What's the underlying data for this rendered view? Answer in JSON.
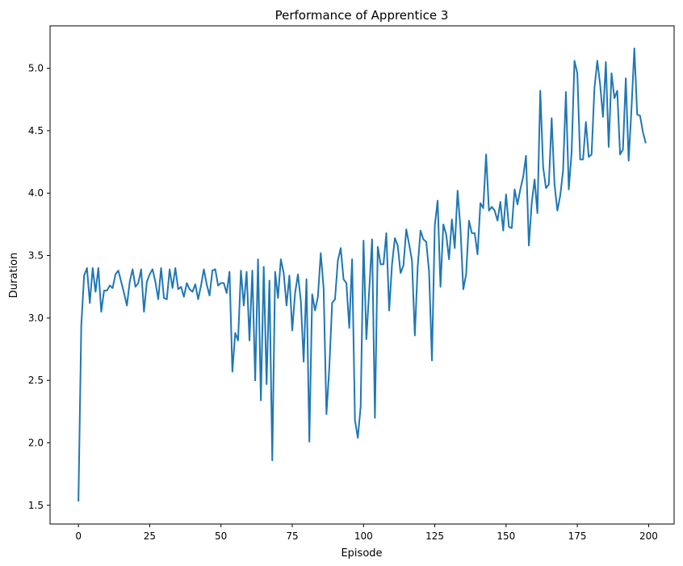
{
  "chart_data": {
    "type": "line",
    "title": "Performance of Apprentice 3",
    "xlabel": "Episode",
    "ylabel": "Duration",
    "xlim": [
      -9.95,
      208.95
    ],
    "ylim": [
      1.35,
      5.34
    ],
    "xticks": [
      0,
      25,
      50,
      75,
      100,
      125,
      150,
      175,
      200
    ],
    "yticks": [
      1.5,
      2.0,
      2.5,
      3.0,
      3.5,
      4.0,
      4.5,
      5.0
    ],
    "xtick_labels": [
      "0",
      "25",
      "50",
      "75",
      "100",
      "125",
      "150",
      "175",
      "200"
    ],
    "ytick_labels": [
      "1.5",
      "2.0",
      "2.5",
      "3.0",
      "3.5",
      "4.0",
      "4.5",
      "5.0"
    ],
    "grid": false,
    "legend": "none",
    "series": [
      {
        "color": "#1f77b4",
        "values": [
          1.53,
          2.94,
          3.34,
          3.4,
          3.12,
          3.4,
          3.21,
          3.4,
          3.05,
          3.22,
          3.22,
          3.26,
          3.24,
          3.35,
          3.38,
          3.29,
          3.2,
          3.1,
          3.29,
          3.39,
          3.25,
          3.28,
          3.39,
          3.05,
          3.29,
          3.35,
          3.39,
          3.29,
          3.15,
          3.4,
          3.16,
          3.15,
          3.39,
          3.24,
          3.4,
          3.23,
          3.25,
          3.17,
          3.28,
          3.23,
          3.21,
          3.27,
          3.15,
          3.26,
          3.39,
          3.27,
          3.18,
          3.38,
          3.39,
          3.26,
          3.28,
          3.28,
          3.2,
          3.37,
          2.57,
          2.88,
          2.82,
          3.38,
          3.1,
          3.37,
          2.82,
          3.38,
          2.5,
          3.47,
          2.34,
          3.41,
          2.47,
          3.3,
          1.86,
          3.37,
          3.16,
          3.47,
          3.36,
          3.1,
          3.34,
          2.9,
          3.2,
          3.35,
          3.14,
          2.65,
          3.31,
          2.01,
          3.19,
          3.06,
          3.17,
          3.52,
          3.24,
          2.23,
          2.6,
          3.12,
          3.15,
          3.46,
          3.56,
          3.31,
          3.28,
          2.92,
          3.47,
          2.18,
          2.04,
          2.29,
          3.62,
          2.83,
          3.22,
          3.63,
          2.2,
          3.57,
          3.43,
          3.43,
          3.68,
          3.06,
          3.43,
          3.64,
          3.58,
          3.36,
          3.42,
          3.71,
          3.59,
          3.46,
          2.86,
          3.41,
          3.7,
          3.63,
          3.61,
          3.37,
          2.66,
          3.74,
          3.94,
          3.25,
          3.75,
          3.67,
          3.47,
          3.79,
          3.56,
          4.02,
          3.72,
          3.23,
          3.35,
          3.78,
          3.68,
          3.68,
          3.51,
          3.92,
          3.88,
          4.31,
          3.86,
          3.89,
          3.86,
          3.78,
          3.93,
          3.7,
          3.99,
          3.73,
          3.72,
          4.03,
          3.91,
          4.03,
          4.13,
          4.3,
          3.58,
          3.92,
          4.11,
          3.84,
          4.82,
          4.21,
          4.04,
          4.07,
          4.6,
          4.07,
          3.86,
          3.98,
          4.18,
          4.81,
          4.03,
          4.33,
          5.06,
          4.96,
          4.27,
          4.27,
          4.57,
          4.29,
          4.31,
          4.84,
          5.06,
          4.87,
          4.61,
          5.05,
          4.37,
          4.96,
          4.76,
          4.82,
          4.31,
          4.35,
          4.92,
          4.26,
          4.68,
          5.16,
          4.63,
          4.62,
          4.49,
          4.4
        ]
      }
    ]
  }
}
